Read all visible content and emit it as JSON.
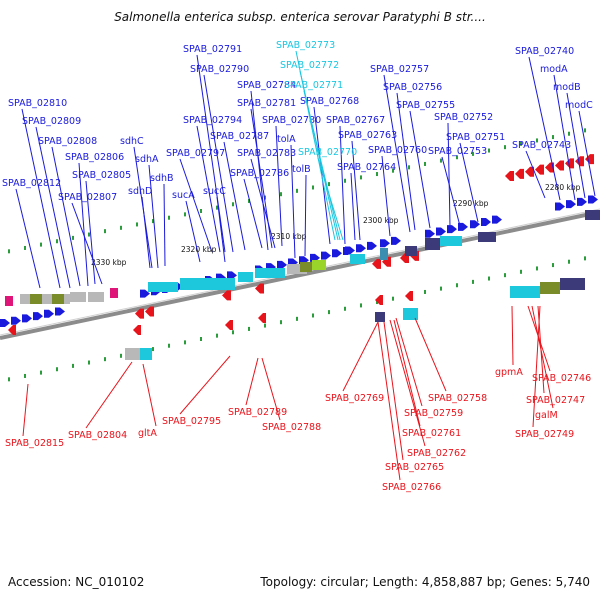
{
  "title": "Salmonella enterica subsp. enterica serovar Paratyphi B str....",
  "footer": {
    "accession": "Accession: NC_010102",
    "topology": "Topology: circular; Length: 4,858,887 bp; Genes: 5,740"
  },
  "colors": {
    "forward_gene": "#1a1adc",
    "reverse_gene": "#e8141c",
    "highlight_label": "#19c6e0",
    "backbone": "#8c8c8c"
  },
  "scale_ticks": [
    "2280 kbp",
    "2290 kbp",
    "2300 kbp",
    "2310 kbp",
    "2320 kbp",
    "2330 kbp"
  ],
  "forward_labels": [
    "SPAB_02791",
    "SPAB_02790",
    "SPAB_02784",
    "SPAB_02781",
    "SPAB_02780",
    "SPAB_02794",
    "SPAB_02787",
    "SPAB_02783",
    "SPAB_02797",
    "SPAB_02786",
    "SPAB_02810",
    "SPAB_02809",
    "SPAB_02808",
    "SPAB_02806",
    "SPAB_02805",
    "SPAB_02812",
    "SPAB_02807",
    "sdhC",
    "sdhA",
    "sdhB",
    "sdhD",
    "sucA",
    "sucC",
    "tolA",
    "tolB",
    "SPAB_02768",
    "SPAB_02767",
    "SPAB_02763",
    "SPAB_02760",
    "SPAB_02764",
    "SPAB_02757",
    "SPAB_02756",
    "SPAB_02755",
    "SPAB_02752",
    "SPAB_02751",
    "SPAB_02753",
    "SPAB_02740",
    "modA",
    "modB",
    "modC",
    "SPAB_02743"
  ],
  "highlight_labels": [
    "SPAB_02773",
    "SPAB_02772",
    "SPAB_02771",
    "SPAB_02770"
  ],
  "reverse_labels": [
    "SPAB_02815",
    "SPAB_02804",
    "gltA",
    "SPAB_02795",
    "SPAB_02789",
    "SPAB_02788",
    "SPAB_02769",
    "SPAB_02758",
    "SPAB_02759",
    "SPAB_02761",
    "SPAB_02762",
    "SPAB_02765",
    "SPAB_02766",
    "gpmA",
    "SPAB_02746",
    "SPAB_02747",
    "galM",
    "SPAB_02749"
  ]
}
